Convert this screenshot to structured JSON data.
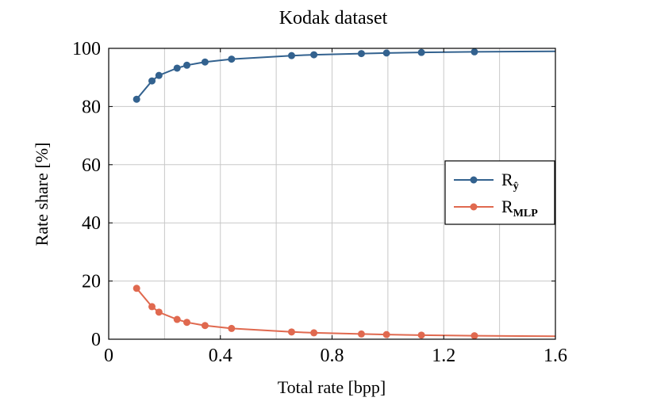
{
  "chart_data": {
    "type": "line",
    "title": "Kodak dataset",
    "xlabel": "Total rate [bpp]",
    "ylabel": "Rate share [%]",
    "xlim": [
      0,
      1.6
    ],
    "ylim": [
      0,
      100
    ],
    "xticks": [
      0,
      0.4,
      0.8,
      1.2,
      1.6
    ],
    "xtick_labels": [
      "0",
      "0.4",
      "0.8",
      "1.2",
      "1.6"
    ],
    "yticks": [
      0,
      20,
      40,
      60,
      80,
      100
    ],
    "ytick_labels": [
      "0",
      "20",
      "40",
      "60",
      "80",
      "100"
    ],
    "grid": true,
    "legend_position": "right",
    "series": [
      {
        "name_main": "R",
        "name_sub": "ŷ",
        "color": "#33628f",
        "points": [
          [
            0.1,
            82.5
          ],
          [
            0.155,
            88.8
          ],
          [
            0.18,
            90.7
          ],
          [
            0.245,
            93.2
          ],
          [
            0.28,
            94.2
          ],
          [
            0.345,
            95.3
          ],
          [
            0.44,
            96.3
          ],
          [
            0.655,
            97.5
          ],
          [
            0.735,
            97.8
          ],
          [
            0.905,
            98.2
          ],
          [
            0.995,
            98.4
          ],
          [
            1.12,
            98.6
          ],
          [
            1.31,
            98.8
          ],
          [
            1.6,
            99.0
          ]
        ],
        "markers": 13
      },
      {
        "name_main": "R",
        "name_sub": "MLP",
        "color": "#e0694f",
        "points": [
          [
            0.1,
            17.5
          ],
          [
            0.155,
            11.2
          ],
          [
            0.18,
            9.3
          ],
          [
            0.245,
            6.8
          ],
          [
            0.28,
            5.8
          ],
          [
            0.345,
            4.7
          ],
          [
            0.44,
            3.7
          ],
          [
            0.655,
            2.5
          ],
          [
            0.735,
            2.2
          ],
          [
            0.905,
            1.8
          ],
          [
            0.995,
            1.6
          ],
          [
            1.12,
            1.4
          ],
          [
            1.31,
            1.2
          ],
          [
            1.6,
            1.0
          ]
        ],
        "markers": 13
      }
    ]
  }
}
